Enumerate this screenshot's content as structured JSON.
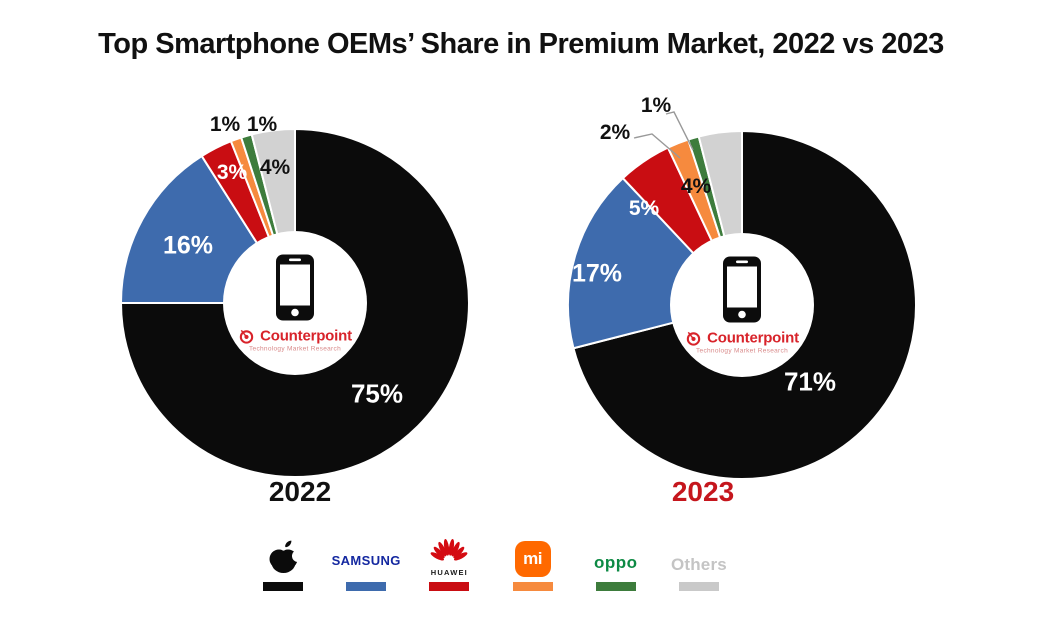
{
  "title": "Top Smartphone OEMs’ Share in Premium Market, 2022 vs 2023",
  "chart_data": [
    {
      "type": "pie",
      "subtype": "donut",
      "title": "2022",
      "title_color": "#111111",
      "unit": "%",
      "categories": [
        "Apple",
        "Samsung",
        "Huawei",
        "Xiaomi",
        "OPPO",
        "Others"
      ],
      "values": [
        75,
        16,
        3,
        1,
        1,
        4
      ],
      "colors": [
        "#0b0b0b",
        "#3e6bad",
        "#c90d12",
        "#f68a3e",
        "#3d7c3c",
        "#d2d2d2"
      ],
      "labels": [
        "75%",
        "16%",
        "3%",
        "1%",
        "1%",
        "4%"
      ],
      "start_angle_deg": 0,
      "direction": "clockwise",
      "legend_position": "bottom"
    },
    {
      "type": "pie",
      "subtype": "donut",
      "title": "2023",
      "title_color": "#c5161d",
      "unit": "%",
      "categories": [
        "Apple",
        "Samsung",
        "Huawei",
        "Xiaomi",
        "OPPO",
        "Others"
      ],
      "values": [
        71,
        17,
        5,
        2,
        1,
        4
      ],
      "colors": [
        "#0b0b0b",
        "#3e6bad",
        "#c90d12",
        "#f68a3e",
        "#3d7c3c",
        "#d2d2d2"
      ],
      "labels": [
        "71%",
        "17%",
        "5%",
        "2%",
        "1%",
        "4%"
      ],
      "start_angle_deg": 0,
      "direction": "clockwise",
      "legend_position": "bottom"
    }
  ],
  "center_badge": {
    "brand": "Counterpoint",
    "tagline": "Technology Market Research",
    "brand_color": "#d8232a",
    "icon": "smartphone-icon"
  },
  "legend": {
    "items": [
      {
        "label": "Apple",
        "logo": "apple-logo",
        "color": "#0b0b0b"
      },
      {
        "label": "SAMSUNG",
        "logo": "samsung-wordmark",
        "color": "#3e6bad",
        "wordmark_color": "#1428a0"
      },
      {
        "label": "HUAWEI",
        "logo": "huawei-logo",
        "color": "#c90d12",
        "logo_color": "#d40b12"
      },
      {
        "label": "mi",
        "logo": "xiaomi-logo",
        "color": "#f68a3e",
        "logo_bg": "#ff6900"
      },
      {
        "label": "oppo",
        "logo": "oppo-wordmark",
        "color": "#3d7c3c",
        "wordmark_color": "#0d8a44"
      },
      {
        "label": "Others",
        "logo": "others-text",
        "color": "#c9c9c9",
        "text_color": "#c4c4c4"
      }
    ]
  }
}
